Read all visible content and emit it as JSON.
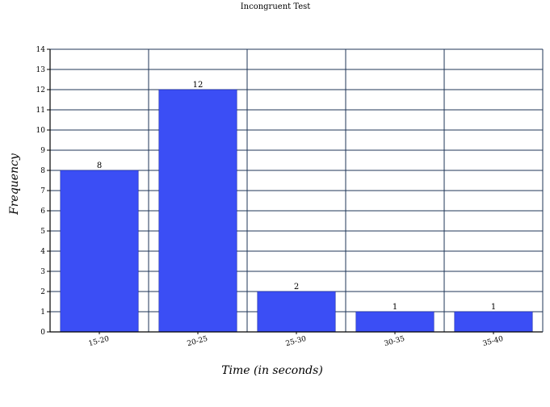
{
  "chart_data": {
    "type": "bar",
    "title": "Incongruent Test",
    "xlabel": "Time (in seconds)",
    "ylabel": "Frequency",
    "categories": [
      "15-20",
      "20-25",
      "25-30",
      "30-35",
      "35-40"
    ],
    "values": [
      8,
      12,
      2,
      1,
      1
    ],
    "ylim": [
      0,
      14
    ],
    "yticks": [
      0,
      1,
      2,
      3,
      4,
      5,
      6,
      7,
      8,
      9,
      10,
      11,
      12,
      13,
      14
    ],
    "grid": true,
    "data_labels": true,
    "bar_color": "#3b4ef5",
    "grid_color": "#1f3557"
  }
}
